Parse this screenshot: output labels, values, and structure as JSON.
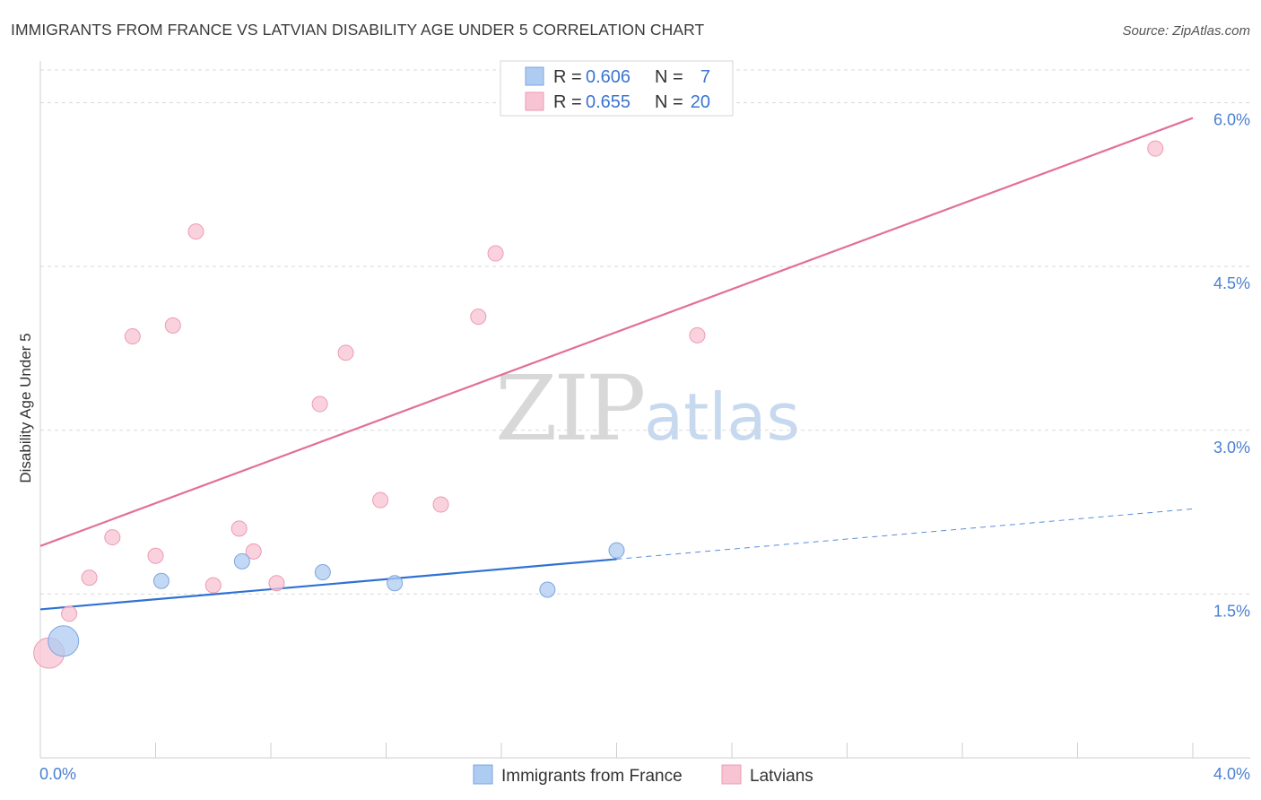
{
  "chart_data": {
    "type": "scatter",
    "title": "IMMIGRANTS FROM FRANCE VS LATVIAN DISABILITY AGE UNDER 5 CORRELATION CHART",
    "source": "Source: ZipAtlas.com",
    "ylabel": "Disability Age Under 5",
    "xlim": [
      0,
      4.0
    ],
    "ylim": [
      0.0,
      6.3
    ],
    "x_tick_labels": [
      "0.0%",
      "4.0%"
    ],
    "y_ticks": [
      {
        "value": 1.5,
        "label": "1.5%"
      },
      {
        "value": 3.0,
        "label": "3.0%"
      },
      {
        "value": 4.5,
        "label": "4.5%"
      },
      {
        "value": 6.0,
        "label": "6.0%"
      }
    ],
    "watermark": {
      "zip": "ZIP",
      "atlas": "atlas"
    },
    "legend": {
      "r_label": "R =",
      "n_label": "N =",
      "entries": [
        {
          "r": "0.606",
          "n": "7"
        },
        {
          "r": "0.655",
          "n": "20"
        }
      ]
    },
    "series": [
      {
        "name": "Immigrants from France",
        "color": "#aecbf2",
        "stroke": "#7ea6de",
        "line_color": "#2f72d2",
        "points": [
          {
            "x": 0.08,
            "y": 1.07,
            "size": "large"
          },
          {
            "x": 0.42,
            "y": 1.62
          },
          {
            "x": 0.7,
            "y": 1.8
          },
          {
            "x": 0.98,
            "y": 1.7
          },
          {
            "x": 1.23,
            "y": 1.6
          },
          {
            "x": 1.76,
            "y": 1.54
          },
          {
            "x": 2.0,
            "y": 1.9
          }
        ],
        "trend": {
          "x0": 0.0,
          "y0": 1.36,
          "x1": 2.0,
          "y1": 1.82,
          "dash_to_x": 4.0,
          "dash_to_y": 2.28
        }
      },
      {
        "name": "Latvians",
        "color": "#f8c3d3",
        "stroke": "#ec9bb4",
        "line_color": "#e2709a",
        "points": [
          {
            "x": 0.03,
            "y": 0.96,
            "size": "large"
          },
          {
            "x": 0.1,
            "y": 1.32
          },
          {
            "x": 0.17,
            "y": 1.65
          },
          {
            "x": 0.25,
            "y": 2.02
          },
          {
            "x": 0.32,
            "y": 3.86
          },
          {
            "x": 0.4,
            "y": 1.85
          },
          {
            "x": 0.46,
            "y": 3.96
          },
          {
            "x": 0.54,
            "y": 4.82
          },
          {
            "x": 0.6,
            "y": 1.58
          },
          {
            "x": 0.69,
            "y": 2.1
          },
          {
            "x": 0.74,
            "y": 1.89
          },
          {
            "x": 0.82,
            "y": 1.6
          },
          {
            "x": 0.97,
            "y": 3.24
          },
          {
            "x": 1.06,
            "y": 3.71
          },
          {
            "x": 1.18,
            "y": 2.36
          },
          {
            "x": 1.39,
            "y": 2.32
          },
          {
            "x": 1.52,
            "y": 4.04
          },
          {
            "x": 1.58,
            "y": 4.62
          },
          {
            "x": 2.28,
            "y": 3.87
          },
          {
            "x": 3.87,
            "y": 5.58
          }
        ],
        "trend": {
          "x0": 0.0,
          "y0": 1.94,
          "x1": 4.0,
          "y1": 5.86
        }
      }
    ]
  }
}
